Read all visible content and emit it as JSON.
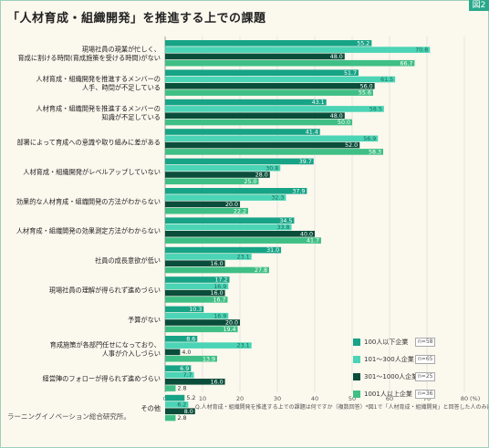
{
  "figure_label": "図2",
  "colors": [
    "#17a386",
    "#4bd4b5",
    "#0a4d3a",
    "#3fbf85"
  ],
  "footnote": "Q.人材育成・組織開発を推進する上での課題は何ですか（複数回答）*図1で「人材育成・組織開発」と回答した人のみに質問",
  "source": "ラーニングイノベーション総合研究所。",
  "chart_data": {
    "type": "bar",
    "orientation": "horizontal",
    "title": "「人材育成・組織開発」を推進する上での課題",
    "categories": [
      [
        "現場社員の現業が忙しく、",
        "育成に割ける時間(育成施策を受ける時間)がない"
      ],
      [
        "人材育成・組織開発を推進するメンバーの",
        "人手、時間が不足している"
      ],
      [
        "人材育成・組織開発を推進するメンバーの",
        "知識が不足している"
      ],
      [
        "部署によって育成への意識や取り組みに差がある"
      ],
      [
        "人材育成・組織開発がレベルアップしていない"
      ],
      [
        "効果的な人材育成・組織開発の方法がわからない"
      ],
      [
        "人材育成・組織開発の効果測定方法がわからない"
      ],
      [
        "社員の成長意欲が低い"
      ],
      [
        "現場社員の理解が得られず進めづらい"
      ],
      [
        "予算がない"
      ],
      [
        "育成施策が各部門任せになっており、",
        "人事が介入しづらい"
      ],
      [
        "経営陣のフォローが得られず進めづらい"
      ],
      [
        "その他"
      ]
    ],
    "series": [
      {
        "name": "100人以下企業",
        "n": "n=58",
        "values": [
          55.2,
          51.7,
          43.1,
          41.4,
          39.7,
          37.9,
          34.5,
          31.0,
          17.2,
          10.3,
          8.6,
          6.9,
          5.2
        ]
      },
      {
        "name": "101〜300人企業",
        "n": "n=65",
        "values": [
          70.8,
          61.5,
          58.5,
          56.9,
          30.8,
          32.3,
          33.8,
          23.1,
          16.9,
          16.9,
          23.1,
          7.7,
          6.2
        ]
      },
      {
        "name": "301〜1000人企業",
        "n": "n=25",
        "values": [
          48.0,
          56.0,
          48.0,
          52.0,
          28.0,
          20.0,
          40.0,
          16.0,
          16.0,
          20.0,
          4.0,
          16.0,
          8.0
        ]
      },
      {
        "name": "1001人以上企業",
        "n": "n=36",
        "values": [
          66.7,
          55.6,
          50.0,
          58.3,
          25.0,
          22.2,
          41.7,
          27.8,
          16.7,
          19.4,
          13.9,
          2.8,
          2.8
        ]
      }
    ],
    "xlim": [
      0,
      80
    ],
    "xticks": [
      0,
      10,
      20,
      30,
      40,
      50,
      60,
      70,
      80
    ],
    "xunit": "(%)",
    "grid": true,
    "legend_position": "bottom-right"
  }
}
